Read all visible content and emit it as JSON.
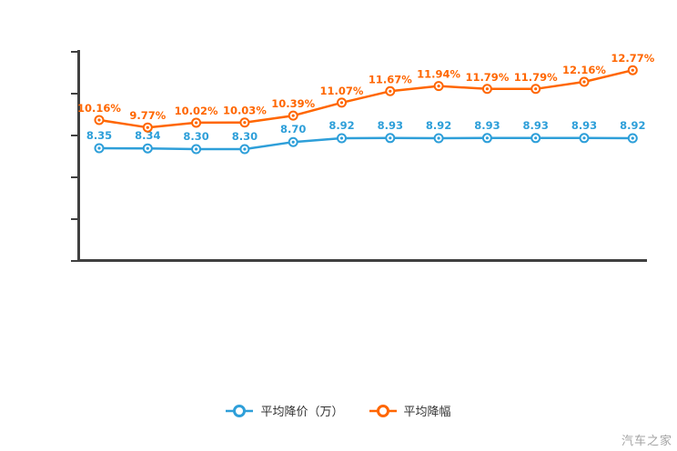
{
  "chart_data": {
    "type": "line",
    "title": "",
    "x_axis_labels_visible": false,
    "y_axis_labels_visible": false,
    "grid": false,
    "legend_position": "bottom",
    "point_count": 12,
    "series": [
      {
        "name": "平均降价（万）",
        "color": "#2E9FD9",
        "values": [
          8.35,
          8.34,
          8.3,
          8.3,
          8.7,
          8.92,
          8.93,
          8.92,
          8.93,
          8.93,
          8.93,
          8.92
        ],
        "labels": [
          "8.35",
          "8.34",
          "8.30",
          "8.30",
          "8.70",
          "8.92",
          "8.93",
          "8.92",
          "8.93",
          "8.93",
          "8.93",
          "8.92"
        ]
      },
      {
        "name": "平均降幅",
        "color": "#FF6600",
        "values": [
          10.16,
          9.77,
          10.02,
          10.03,
          10.39,
          11.07,
          11.67,
          11.94,
          11.79,
          11.79,
          12.16,
          12.77
        ],
        "labels": [
          "10.16%",
          "9.77%",
          "10.02%",
          "10.03%",
          "10.39%",
          "11.07%",
          "11.67%",
          "11.94%",
          "11.79%",
          "11.79%",
          "12.16%",
          "12.77%"
        ]
      }
    ]
  },
  "legend": {
    "items": [
      {
        "label": "平均降价（万）",
        "color": "#2E9FD9"
      },
      {
        "label": "平均降幅",
        "color": "#FF6600"
      }
    ]
  },
  "watermark": "汽车之家",
  "colors": {
    "axis": "#404040",
    "blue": "#2E9FD9",
    "orange": "#FF6600",
    "legend_text": "#333333",
    "watermark": "#A3A3A3"
  }
}
